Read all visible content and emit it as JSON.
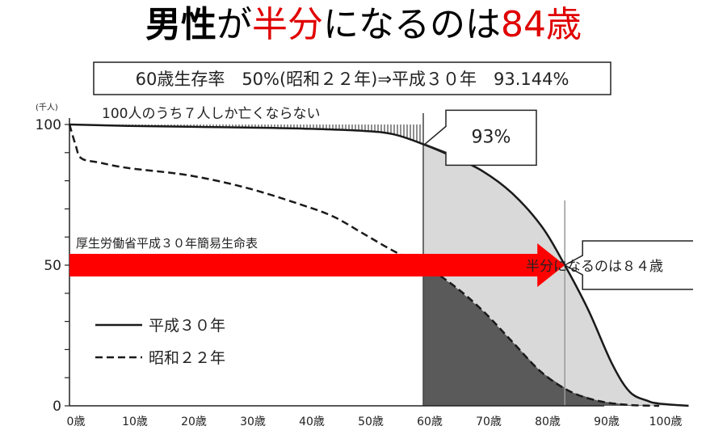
{
  "title": {
    "part1": "男性",
    "part2": "が",
    "part3": "半分",
    "part4": "になるのは",
    "part5": "84歳"
  },
  "colors": {
    "title_red": "#e00000",
    "arrow_red": "#ff0000",
    "shade_light": "#d9d9d9",
    "shade_dark": "#5a5a5a"
  },
  "chart_data": {
    "type": "line",
    "title": "60歳生存率　50%(昭和２２年)⇒平成３０年　93.144%",
    "y_unit": "(千人)",
    "ylim": [
      0,
      100
    ],
    "xlim": [
      0,
      100
    ],
    "x_tick_labels": [
      "0歳",
      "10歳",
      "20歳",
      "30歳",
      "40歳",
      "50歳",
      "60歳",
      "70歳",
      "80歳",
      "90歳",
      "100歳"
    ],
    "y_tick_labels": [
      "100",
      "50",
      "0"
    ],
    "series": [
      {
        "name": "平成３０年",
        "style": "solid",
        "x": [
          0,
          10,
          20,
          30,
          40,
          50,
          55,
          60,
          65,
          70,
          75,
          80,
          84,
          88,
          92,
          95,
          98,
          100,
          105
        ],
        "values": [
          100,
          99.5,
          99.2,
          98.9,
          98.5,
          97.7,
          96.5,
          93,
          88.6,
          83.5,
          75.7,
          64,
          50,
          34,
          15,
          5,
          1.8,
          0.8,
          0
        ]
      },
      {
        "name": "昭和２２年",
        "style": "dashed",
        "x": [
          0,
          1,
          2,
          5,
          10,
          20,
          30,
          40,
          45,
          50,
          55,
          60,
          65,
          70,
          75,
          80,
          85,
          90,
          95,
          100
        ],
        "values": [
          100,
          93,
          88,
          86.5,
          84.5,
          82,
          77.5,
          71,
          67,
          61,
          55,
          50,
          43,
          34,
          23,
          12,
          5,
          1.6,
          0.3,
          0
        ]
      }
    ],
    "annotations": {
      "top_note": "100人のうち７人しか亡くならない",
      "callout_93": "93%",
      "source": "厚生労働省平成３０年簡易生命表",
      "callout_84": "半分になるのは８４歳",
      "half_age": 84,
      "age_60": 60
    },
    "grid": false,
    "legend_position": "bottom-left"
  }
}
